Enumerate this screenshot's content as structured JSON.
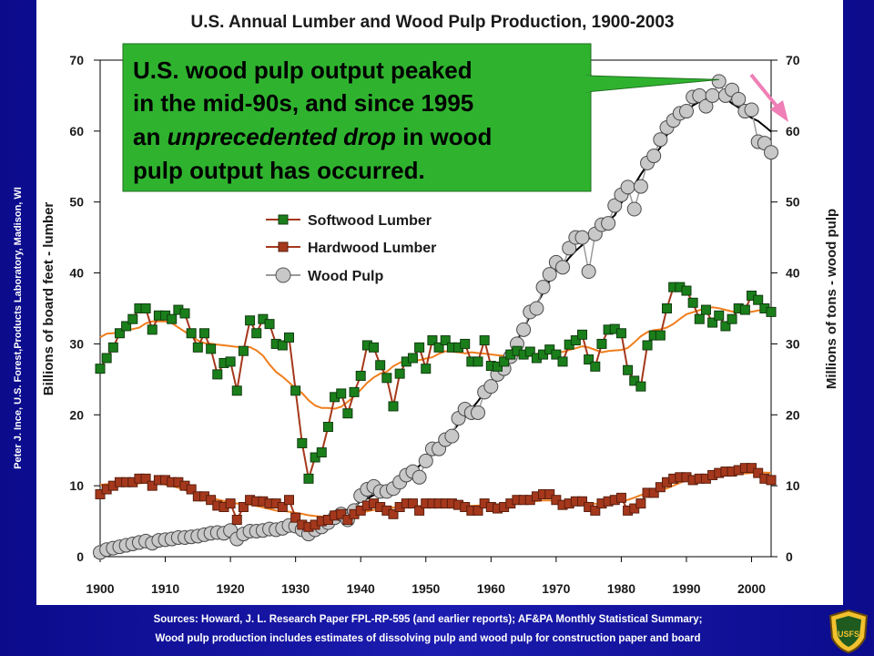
{
  "side_credit": "Peter J. Ince, U.S. Forest,Products Laboratory, Madison, WI",
  "sources": {
    "line1": "Sources:  Howard, J. L.  Research Paper FPL-RP-595 (and earlier reports); AF&PA Monthly Statistical Summary;",
    "line2": "Wood pulp production includes estimates of dissolving pulp and wood pulp for construction paper and board"
  },
  "logo": {
    "text": "USFS",
    "icon": "forest-service-shield-icon"
  },
  "colors": {
    "background": "#1a1aa6",
    "panel": "#ffffff",
    "softwood": "#1a7f1a",
    "hardwood": "#a5381c",
    "pulp_fill": "#c8c8c8",
    "trend_orange": "#f07e1c",
    "trend_black": "#000000",
    "callout_fill": "#2fb32f",
    "arrow": "#ef7fb6"
  },
  "chart_data": {
    "type": "line",
    "title": "U.S. Annual Lumber and Wood Pulp Production, 1900-2003",
    "ylabel_left": "Billions of board feet - lumber",
    "ylabel_right": "Millions of tons - wood pulp",
    "xlim": [
      1900,
      2003
    ],
    "ylim": [
      0,
      70
    ],
    "x_ticks": [
      "1900",
      "1910",
      "1920",
      "1930",
      "1940",
      "1950",
      "1960",
      "1970",
      "1980",
      "1990",
      "2000"
    ],
    "y_ticks": [
      "0",
      "10",
      "20",
      "30",
      "40",
      "50",
      "60",
      "70"
    ],
    "legend_position": "center-left",
    "x": [
      1900,
      1901,
      1902,
      1903,
      1904,
      1905,
      1906,
      1907,
      1908,
      1909,
      1910,
      1911,
      1912,
      1913,
      1914,
      1915,
      1916,
      1917,
      1918,
      1919,
      1920,
      1921,
      1922,
      1923,
      1924,
      1925,
      1926,
      1927,
      1928,
      1929,
      1930,
      1931,
      1932,
      1933,
      1934,
      1935,
      1936,
      1937,
      1938,
      1939,
      1940,
      1941,
      1942,
      1943,
      1944,
      1945,
      1946,
      1947,
      1948,
      1949,
      1950,
      1951,
      1952,
      1953,
      1954,
      1955,
      1956,
      1957,
      1958,
      1959,
      1960,
      1961,
      1962,
      1963,
      1964,
      1965,
      1966,
      1967,
      1968,
      1969,
      1970,
      1971,
      1972,
      1973,
      1974,
      1975,
      1976,
      1977,
      1978,
      1979,
      1980,
      1981,
      1982,
      1983,
      1984,
      1985,
      1986,
      1987,
      1988,
      1989,
      1990,
      1991,
      1992,
      1993,
      1994,
      1995,
      1996,
      1997,
      1998,
      1999,
      2000,
      2001,
      2002,
      2003
    ],
    "series": [
      {
        "name": "Softwood Lumber",
        "marker": "square",
        "values": [
          26.5,
          28,
          29.5,
          31.5,
          32.5,
          33.5,
          35,
          35,
          32,
          34,
          34,
          33.5,
          34.8,
          34.3,
          31.5,
          29.5,
          31.5,
          29.3,
          25.7,
          27.3,
          27.5,
          23.4,
          29,
          33.3,
          31.5,
          33.5,
          32.8,
          30,
          29.8,
          30.9,
          23.4,
          16,
          11,
          14,
          14.7,
          18.3,
          22.5,
          23,
          20.2,
          23.2,
          25.5,
          29.8,
          29.5,
          27,
          25.2,
          21.2,
          25.8,
          27.5,
          28,
          29.5,
          26.5,
          30.5,
          29.5,
          30.5,
          29.5,
          29.5,
          30,
          27.5,
          27.5,
          30.5,
          26.9,
          26.8,
          27.5,
          28.5,
          29,
          28.5,
          28.9,
          28,
          28.5,
          29.2,
          28.5,
          27.5,
          29.9,
          30.5,
          31.3,
          27.8,
          26.8,
          30,
          32,
          32.1,
          31.5,
          26.3,
          24.8,
          24,
          29.8,
          31.2,
          31.2,
          35,
          38,
          38,
          37.5,
          35.8,
          33.5,
          34.8,
          33,
          34,
          32.5,
          33.5,
          35,
          34.8,
          36.8,
          36.2,
          35,
          34.5
        ]
      },
      {
        "name": "Hardwood Lumber",
        "marker": "square",
        "values": [
          8.8,
          9.5,
          10,
          10.5,
          10.5,
          10.5,
          11,
          11,
          10,
          10.8,
          10.8,
          10.5,
          10.5,
          10,
          9.5,
          8.5,
          8.5,
          8,
          7.2,
          7,
          7.5,
          5.2,
          7,
          8,
          7.8,
          7.8,
          7.5,
          7.5,
          7,
          8,
          5.5,
          4.5,
          4.2,
          4.5,
          5,
          5.2,
          5.8,
          6,
          5.2,
          6,
          6.5,
          7.2,
          7.5,
          7,
          6.5,
          6,
          7,
          7.5,
          7.5,
          6.5,
          7.5,
          7.5,
          7.5,
          7.5,
          7.5,
          7.3,
          7,
          6.5,
          6.5,
          7.5,
          7,
          6.8,
          7,
          7.5,
          8,
          8,
          8,
          8.5,
          8.8,
          8.8,
          8,
          7.3,
          7.5,
          7.8,
          7.8,
          7,
          6.5,
          7.5,
          7.8,
          8,
          8.3,
          6.5,
          6.8,
          7.5,
          9,
          9,
          9.8,
          10.5,
          11,
          11.2,
          11.2,
          10.8,
          11,
          11,
          11.5,
          11.8,
          12,
          12,
          12.2,
          12.5,
          12.5,
          11.8,
          11,
          10.8
        ]
      },
      {
        "name": "Wood Pulp",
        "marker": "circle",
        "values": [
          0.6,
          1,
          1.2,
          1.4,
          1.6,
          1.8,
          2,
          2.2,
          1.9,
          2.3,
          2.4,
          2.5,
          2.7,
          2.7,
          2.8,
          2.9,
          3.1,
          3.3,
          3.4,
          3.3,
          3.7,
          2.5,
          3.2,
          3.6,
          3.6,
          3.7,
          3.9,
          3.8,
          4,
          4.4,
          4.3,
          3.8,
          3.2,
          3.8,
          4.2,
          4.8,
          5.5,
          6,
          5.2,
          6.5,
          8.6,
          9.5,
          9.9,
          9.2,
          9.2,
          9.6,
          10.5,
          11.5,
          12,
          11.2,
          13.5,
          15.2,
          15.2,
          16.5,
          17,
          19.5,
          20.8,
          20.3,
          20.3,
          23.2,
          24,
          25.7,
          26.5,
          28.2,
          30,
          32,
          34.5,
          35,
          38,
          39.8,
          41.5,
          40.8,
          43.5,
          45,
          45,
          40.2,
          45.5,
          46.8,
          47,
          49.5,
          51,
          52.1,
          49,
          52.2,
          55.5,
          56.5,
          58.8,
          60.5,
          61.5,
          62.5,
          62.8,
          64.8,
          65,
          63.5,
          65,
          67,
          65,
          65.8,
          64.5,
          62.8,
          63,
          58.5,
          58.3,
          57
        ]
      }
    ],
    "trend_lines": [
      "Softwood Lumber",
      "Hardwood Lumber",
      "Wood Pulp"
    ],
    "annotation": {
      "line1": "U.S. wood pulp output peaked",
      "line2": "in the mid-90s, and since 1995",
      "line3_pre": "an ",
      "line3_emph": "unprecedented drop",
      "line3_post": " in wood",
      "line4": "pulp output has occurred.",
      "target_year": 1995,
      "target_value": 67
    }
  }
}
